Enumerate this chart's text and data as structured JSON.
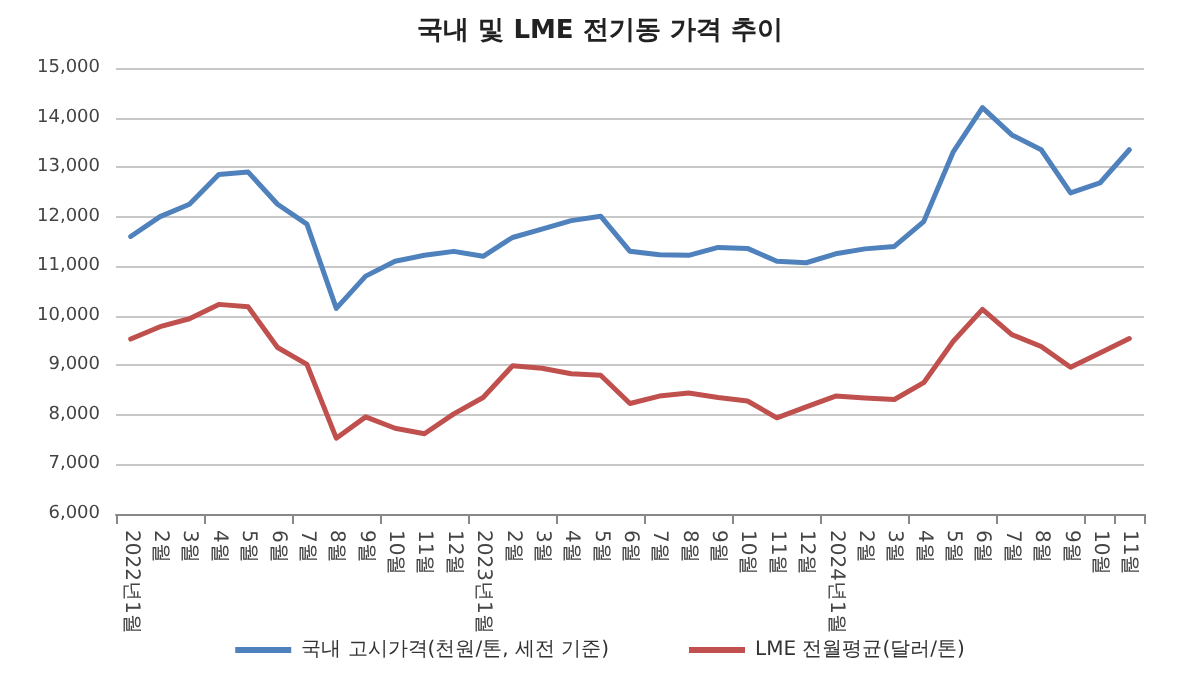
{
  "chart_data": {
    "type": "line",
    "title": "국내 및 LME 전기동 가격 추이",
    "categories": [
      "2022년1월",
      "2월",
      "3월",
      "4월",
      "5월",
      "6월",
      "7월",
      "8월",
      "9월",
      "10월",
      "11월",
      "12월",
      "2023년1월",
      "2월",
      "3월",
      "4월",
      "5월",
      "6월",
      "7월",
      "8월",
      "9월",
      "10월",
      "11월",
      "12월",
      "2024년1월",
      "2월",
      "3월",
      "4월",
      "5월",
      "6월",
      "7월",
      "8월",
      "9월",
      "10월",
      "11월"
    ],
    "series": [
      {
        "name": "국내 고시가격(천원/톤, 세전 기준)",
        "color": "#4f81bd",
        "values": [
          11600,
          12000,
          12250,
          12850,
          12900,
          12250,
          11850,
          10150,
          10800,
          11100,
          11220,
          11300,
          11200,
          11580,
          11750,
          11920,
          12010,
          11300,
          11230,
          11220,
          11380,
          11360,
          11100,
          11070,
          11250,
          11350,
          11400,
          11900,
          13300,
          14200,
          13650,
          13350,
          12480,
          12680,
          13350
        ]
      },
      {
        "name": "LME 전월평균(달러/톤)",
        "color": "#c0504d",
        "values": [
          9530,
          9780,
          9940,
          10230,
          10180,
          9360,
          9020,
          7530,
          7960,
          7730,
          7620,
          8020,
          8350,
          8990,
          8940,
          8830,
          8800,
          8230,
          8380,
          8440,
          8350,
          8280,
          7940,
          8160,
          8380,
          8340,
          8310,
          8650,
          9480,
          10130,
          9620,
          9380,
          8960,
          9250,
          9540
        ]
      }
    ],
    "ylim": [
      6000,
      15000
    ],
    "yticks": [
      {
        "value": 6000,
        "label": "6,000"
      },
      {
        "value": 7000,
        "label": "7,000"
      },
      {
        "value": 8000,
        "label": "8,000"
      },
      {
        "value": 9000,
        "label": "9,000"
      },
      {
        "value": 10000,
        "label": "10,000"
      },
      {
        "value": 11000,
        "label": "11,000"
      },
      {
        "value": 12000,
        "label": "12,000"
      },
      {
        "value": 13000,
        "label": "13,000"
      },
      {
        "value": 14000,
        "label": "14,000"
      },
      {
        "value": 15000,
        "label": "15,000"
      }
    ],
    "grid": "y",
    "legend": "bottom",
    "marker": "none",
    "line_style": "solid"
  }
}
